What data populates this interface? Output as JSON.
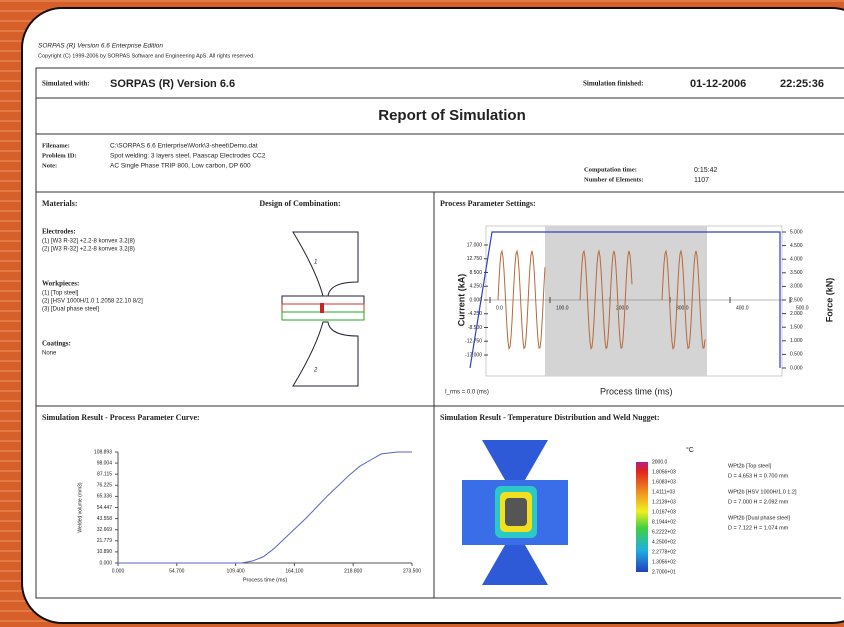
{
  "header": {
    "line1": "SORPAS (R)  Version 6.6  Enterprise Edition",
    "line2": "Copyright (C) 1999-2006 by SORPAS Software and Engineering ApS. All rights reserved."
  },
  "info": {
    "simulated_label": "Simulated with:",
    "simulated_value": "SORPAS (R) Version 6.6",
    "finished_label": "Simulation finished:",
    "finished_date": "01-12-2006",
    "finished_time": "22:25:36"
  },
  "title": "Report of Simulation",
  "file": {
    "rows": [
      [
        "Filename:",
        "C:\\SORPAS 6.6 Enterprise\\Work\\3-sheet\\Demo.dat"
      ],
      [
        "Problem ID:",
        "Spot welding: 3 layers steel, Paascap Electrodes CC2"
      ],
      [
        "Note:",
        "AC Single Phase   TRIP 800, Low carbon, DP 600"
      ]
    ],
    "stats": [
      [
        "Computation time:",
        "0:15:42"
      ],
      [
        "Number of Elements:",
        "1107"
      ]
    ]
  },
  "materials": {
    "title": "Materials:",
    "design_title": "Design of Combination:",
    "electrodes_label": "Electrodes:",
    "electrodes": [
      "(1)  [W3 R-32]  +2.2-8 konvex 3.2(8)",
      "(2)  [W3 R-32]  +2.2-8 konvex 3.2(8)"
    ],
    "workpieces_label": "Workpieces:",
    "workpieces": [
      "(1)  [Top steel]",
      "(2)  [HSV 1000H/1.0 1.2058 22.10 8/2]",
      "(3)  [Dual phase steel]"
    ],
    "coatings_label": "Coatings:",
    "coatings": "None",
    "part_labels": [
      "1",
      "2"
    ]
  },
  "parameters": {
    "title": "Process Parameter Settings:",
    "y_label": "Current (kA)",
    "y2_label": "Force (kN)",
    "x_label": "Process time (ms)",
    "note": "I_rms = 0.0 (ms)",
    "ylim": [
      -17,
      17
    ],
    "yticks": [
      {
        "value": 17,
        "label": "17.000"
      },
      {
        "value": 12.75,
        "label": "12.750"
      },
      {
        "value": 8.5,
        "label": "8.500"
      },
      {
        "value": 4.25,
        "label": "4.250"
      },
      {
        "value": 0,
        "label": "0.000"
      },
      {
        "value": -4.25,
        "label": "-4.250"
      },
      {
        "value": -8.5,
        "label": "-8.500"
      },
      {
        "value": -12.75,
        "label": "-12.750"
      },
      {
        "value": -17,
        "label": "-17.000"
      }
    ],
    "y2lim": [
      0,
      5
    ],
    "y2ticks": [
      {
        "value": 5,
        "label": "5.000"
      },
      {
        "value": 4.5,
        "label": "4.500"
      },
      {
        "value": 4,
        "label": "4.000"
      },
      {
        "value": 3.5,
        "label": "3.500"
      },
      {
        "value": 3,
        "label": "3.000"
      },
      {
        "value": 2.5,
        "label": "2.500"
      },
      {
        "value": 2,
        "label": "2.000"
      },
      {
        "value": 1.5,
        "label": "1.500"
      },
      {
        "value": 1,
        "label": "1.000"
      },
      {
        "value": 0.5,
        "label": "0.500"
      },
      {
        "value": 0,
        "label": "0.000"
      }
    ],
    "xlim": [
      0,
      500
    ],
    "xticks": [
      {
        "value": 0,
        "label": "0.0"
      },
      {
        "value": 100,
        "label": "100.0"
      },
      {
        "value": 200,
        "label": "200.0"
      },
      {
        "value": 300,
        "label": "300.0"
      },
      {
        "value": 400,
        "label": "400.0"
      },
      {
        "value": 500,
        "label": "500.0"
      }
    ]
  },
  "chart_data": {
    "type": "line",
    "title": "Simulation Result - Process Parameter Curve:",
    "y_label": "Welded volume (mm3)",
    "x_label": "Process time (ms)",
    "x": [
      0,
      54.7,
      100,
      115,
      125,
      135,
      145,
      155,
      165,
      175,
      185,
      195,
      205,
      215,
      225,
      235,
      245,
      260,
      273.5
    ],
    "series": [
      {
        "name": "Welded volume",
        "color": "#5a64c8",
        "values": [
          0,
          0,
          0,
          0,
          2,
          6,
          14,
          24,
          34,
          44,
          55,
          66,
          76,
          86,
          95,
          101,
          107,
          108.893,
          108.893
        ]
      }
    ],
    "xlim": [
      0,
      273.5
    ],
    "xticks": [
      {
        "value": 0,
        "label": "0.000"
      },
      {
        "value": 54.7,
        "label": "54.700"
      },
      {
        "value": 109.4,
        "label": "109.400"
      },
      {
        "value": 164.1,
        "label": "164.100"
      },
      {
        "value": 218.8,
        "label": "218.800"
      },
      {
        "value": 273.5,
        "label": "273.500"
      }
    ],
    "ylim": [
      0,
      108.893
    ],
    "yticks": [
      {
        "value": 108.893,
        "label": "108.893"
      },
      {
        "value": 98.004,
        "label": "98.004"
      },
      {
        "value": 87.115,
        "label": "87.115"
      },
      {
        "value": 76.225,
        "label": "76.225"
      },
      {
        "value": 65.336,
        "label": "65.336"
      },
      {
        "value": 54.447,
        "label": "54.447"
      },
      {
        "value": 43.558,
        "label": "43.558"
      },
      {
        "value": 32.669,
        "label": "32.669"
      },
      {
        "value": 21.779,
        "label": "21.779"
      },
      {
        "value": 10.89,
        "label": "10.890"
      },
      {
        "value": 0,
        "label": "0.000"
      }
    ]
  },
  "temperature": {
    "title": "Simulation Result - Temperature Distribution and Weld Nugget:",
    "unit": "°C",
    "legend": [
      "2000.0",
      "1.8056+03",
      "1.6083+03",
      "1.4111+03",
      "1.2139+03",
      "1.0167+03",
      "8.1944+02",
      "6.2222+02",
      "4.2500+02",
      "2.2778+02",
      "1.3056+02",
      "2.7000+01"
    ],
    "nuggets": [
      [
        "WPt2b   [Top steel]",
        "D = 4.653    H = 0.700  mm"
      ],
      [
        "WPt2b   [HSV 1000H/1.0 1.2]",
        "D = 7.000    H = 2.092  mm"
      ],
      [
        "WPt2b   [Dual phase steel]",
        "D = 7.122    H = 1.074  mm"
      ]
    ]
  }
}
